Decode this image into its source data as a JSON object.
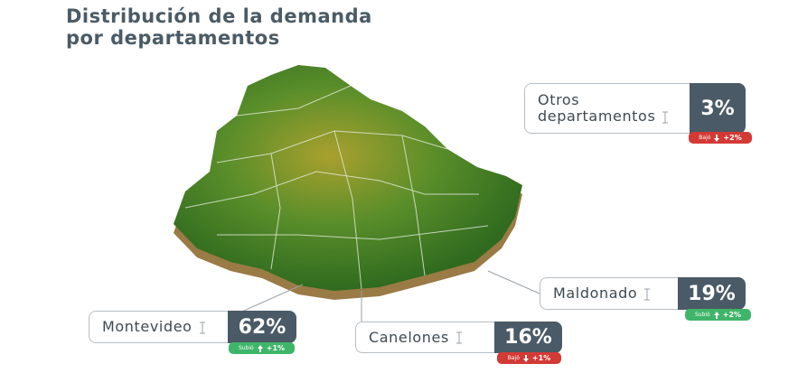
{
  "header": {
    "title_lines": [
      "Distribución de la demanda",
      "por departamentos"
    ]
  },
  "callouts": [
    {
      "name_lines": [
        "Otros",
        "departamentos"
      ],
      "share": "3%",
      "status": "Bajó",
      "change": "+2%",
      "direction": "down"
    },
    {
      "name_lines": [
        "Maldonado"
      ],
      "share": "19%",
      "status": "Subió",
      "change": "+2%",
      "direction": "up"
    },
    {
      "name_lines": [
        "Montevideo"
      ],
      "share": "62%",
      "status": "Subió",
      "change": "+1%",
      "direction": "up"
    },
    {
      "name_lines": [
        "Canelones"
      ],
      "share": "16%",
      "status": "Bajó",
      "change": "+1%",
      "direction": "down"
    }
  ]
}
